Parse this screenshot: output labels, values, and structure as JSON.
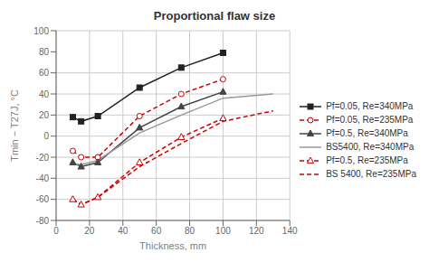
{
  "chart_data": {
    "type": "line",
    "title": "Proportional flaw size",
    "xlabel": "Thickness, mm",
    "ylabel": "Tmin − T27J, °C",
    "xlim": [
      0,
      140
    ],
    "ylim": [
      -80,
      100
    ],
    "xticks": [
      0,
      20,
      40,
      60,
      80,
      100,
      120,
      140
    ],
    "yticks": [
      -80,
      -60,
      -40,
      -20,
      0,
      20,
      40,
      60,
      80,
      100
    ],
    "grid": true,
    "legend": "right",
    "series": [
      {
        "name": "Pf=0.05, Re=340MPa",
        "color": "#222222",
        "line_style": "solid",
        "marker": "square",
        "x": [
          10,
          15,
          25,
          50,
          75,
          100
        ],
        "values": [
          18,
          14,
          19,
          46,
          65,
          79
        ]
      },
      {
        "name": "Pf=0.05, Re=235MPa",
        "color": "#cc0000",
        "line_style": "dashed",
        "marker": "circle-open",
        "x": [
          10,
          15,
          25,
          50,
          75,
          100
        ],
        "values": [
          -14,
          -20,
          -20,
          19,
          40,
          54
        ]
      },
      {
        "name": "Pf=0.5, Re=340MPa",
        "color": "#444444",
        "line_style": "solid",
        "marker": "triangle",
        "x": [
          10,
          15,
          25,
          50,
          75,
          100
        ],
        "values": [
          -25,
          -29,
          -25,
          8,
          28,
          42
        ]
      },
      {
        "name": "BS5400, Re=340MPa",
        "color": "#999999",
        "line_style": "solid",
        "marker": "none",
        "x": [
          10,
          15,
          25,
          50,
          75,
          100,
          130
        ],
        "values": [
          -26,
          -27,
          -23,
          3,
          20,
          36,
          40
        ]
      },
      {
        "name": "Pf=0.5, Re=235MPa",
        "color": "#cc0000",
        "line_style": "dashed",
        "marker": "triangle-open",
        "x": [
          10,
          15,
          25,
          50,
          75,
          100
        ],
        "values": [
          -60,
          -65,
          -58,
          -25,
          -1,
          17
        ]
      },
      {
        "name": "BS 5400, Re=235MPa",
        "color": "#cc0000",
        "line_style": "dashed",
        "marker": "none",
        "x": [
          10,
          15,
          25,
          50,
          75,
          100,
          130
        ],
        "values": [
          -60,
          -65,
          -58,
          -29,
          -7,
          14,
          24
        ]
      }
    ]
  }
}
